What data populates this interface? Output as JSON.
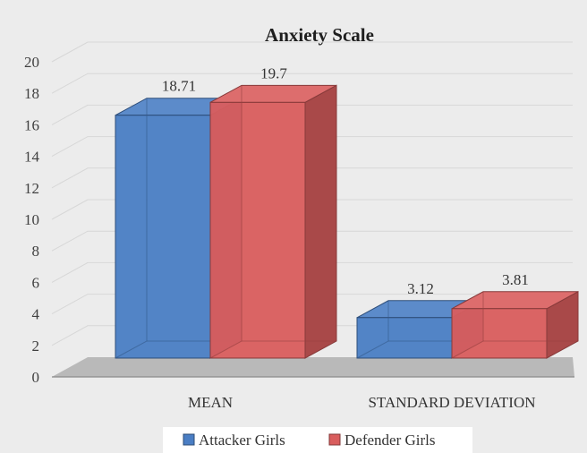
{
  "chart_data": {
    "type": "bar",
    "title": "Anxiety Scale",
    "categories": [
      "MEAN",
      "STANDARD DEVIATION"
    ],
    "series": [
      {
        "name": "Attacker Girls",
        "values": [
          18.71,
          3.12
        ],
        "labels": [
          "18.71",
          "3.12"
        ]
      },
      {
        "name": "Defender Girls",
        "values": [
          19.7,
          3.81
        ],
        "labels": [
          "19.7",
          "3.81"
        ]
      }
    ],
    "ylim": [
      0,
      20
    ],
    "yticks": [
      "0",
      "2",
      "4",
      "6",
      "8",
      "10",
      "12",
      "14",
      "16",
      "18",
      "20"
    ],
    "grid": true,
    "legend_position": "bottom",
    "three_d": true,
    "colors": {
      "Attacker Girls": "#4a7ec4",
      "Defender Girls": "#d95d5d",
      "background": "#ececec",
      "floor": "#b9b9b9"
    }
  }
}
